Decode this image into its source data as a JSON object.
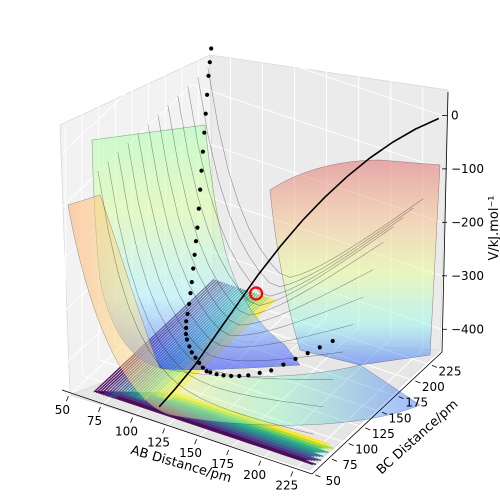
{
  "chart_data": {
    "type": "surface",
    "title": "",
    "xlabel": "AB Distance/pm",
    "ylabel": "BC Distance/pm",
    "zlabel": "V/kJ.mol⁻¹",
    "xticks": [
      "50",
      "75",
      "100",
      "125",
      "150",
      "175",
      "200",
      "225"
    ],
    "yticks": [
      "50",
      "75",
      "100",
      "125",
      "150",
      "175",
      "200",
      "225"
    ],
    "zticks": [
      "0",
      "−100",
      "−200",
      "−300",
      "−400"
    ],
    "xlim": [
      45,
      240
    ],
    "ylim": [
      45,
      240
    ],
    "zlim": [
      -450,
      40
    ],
    "grid": true,
    "colormap_surface": "jet",
    "colormap_contour": "viridis",
    "surface_alpha": 0.35,
    "trajectory": {
      "color": "#000000",
      "points_ab_bc_v": [
        [
          60,
          240,
          -20
        ],
        [
          61,
          236,
          -40
        ],
        [
          62,
          232,
          -60
        ],
        [
          63,
          228,
          -90
        ],
        [
          64,
          224,
          -120
        ],
        [
          65,
          220,
          -150
        ],
        [
          66,
          216,
          -180
        ],
        [
          67,
          212,
          -210
        ],
        [
          68,
          208,
          -240
        ],
        [
          69,
          204,
          -270
        ],
        [
          70,
          200,
          -300
        ],
        [
          71,
          196,
          -320
        ],
        [
          72,
          192,
          -340
        ],
        [
          73,
          188,
          -360
        ],
        [
          74,
          184,
          -380
        ],
        [
          75,
          180,
          -395
        ],
        [
          76,
          176,
          -410
        ],
        [
          78,
          170,
          -420
        ],
        [
          80,
          164,
          -425
        ],
        [
          83,
          158,
          -428
        ],
        [
          86,
          152,
          -430
        ],
        [
          90,
          146,
          -430
        ],
        [
          95,
          140,
          -432
        ],
        [
          100,
          134,
          -432
        ],
        [
          106,
          128,
          -430
        ],
        [
          112,
          122,
          -428
        ],
        [
          118,
          116,
          -425
        ],
        [
          124,
          110,
          -420
        ],
        [
          130,
          104,
          -410
        ],
        [
          138,
          98,
          -400
        ],
        [
          146,
          93,
          -390
        ],
        [
          154,
          89,
          -380
        ],
        [
          162,
          86,
          -370
        ],
        [
          170,
          84,
          -360
        ],
        [
          180,
          82,
          -345
        ],
        [
          190,
          80,
          -330
        ],
        [
          200,
          79,
          -310
        ],
        [
          210,
          78,
          -290
        ],
        [
          220,
          77,
          -270
        ],
        [
          230,
          76,
          -250
        ],
        [
          240,
          76,
          -230
        ]
      ]
    },
    "start_marker": {
      "ab": 95,
      "bc": 240,
      "v": -450,
      "color": "#ff0000"
    },
    "upper_curve": {
      "color": "#000000",
      "points_ab_bc_v": [
        [
          112,
          62,
          -440
        ],
        [
          120,
          70,
          -410
        ],
        [
          130,
          80,
          -370
        ],
        [
          140,
          92,
          -320
        ],
        [
          150,
          105,
          -270
        ],
        [
          160,
          118,
          -220
        ],
        [
          170,
          132,
          -175
        ],
        [
          180,
          146,
          -135
        ],
        [
          190,
          160,
          -100
        ],
        [
          200,
          175,
          -70
        ],
        [
          210,
          190,
          -45
        ],
        [
          220,
          205,
          -25
        ],
        [
          230,
          220,
          -10
        ],
        [
          240,
          235,
          0
        ]
      ]
    }
  }
}
